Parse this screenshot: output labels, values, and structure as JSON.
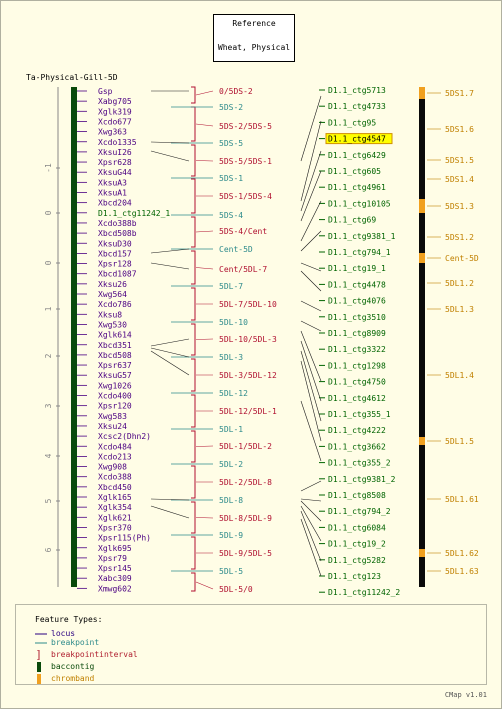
{
  "header": {
    "reference_label": "Reference",
    "reference_map": "Wheat, Physical"
  },
  "map1": {
    "title": "Ta-Physical-Gill-5D",
    "ticks": [
      "-1",
      "0",
      "0",
      "1",
      "2",
      "3",
      "4",
      "5",
      "6"
    ],
    "loci": [
      "Gsp",
      "Xabg705",
      "Xglk319",
      "Xcdo677",
      "Xwg363",
      "Xcdo1335",
      "XksuI26",
      "Xpsr628",
      "XksuG44",
      "XksuA3",
      "XksuA1",
      "Xbcd204",
      "D1.1_ctg11242_1",
      "Xcdo388b",
      "Xbcd508b",
      "XksuD30",
      "Xbcd157",
      "Xpsr128",
      "Xbcd1087",
      "Xksu26",
      "Xwg564",
      "Xcdo786",
      "Xksu8",
      "Xwg530",
      "Xglk614",
      "Xbcd351",
      "Xbcd508",
      "Xpsr637",
      "XksuG57",
      "Xwg1026",
      "Xcdo400",
      "Xpsr120",
      "Xwg583",
      "Xksu24",
      "Xcsc2(Dhn2)",
      "Xcdo484",
      "Xcdo213",
      "Xwg908",
      "Xcdo388",
      "Xbcd450",
      "Xglk165",
      "Xglk354",
      "Xglk621",
      "Xpsr370",
      "Xpsr115(Ph)",
      "Xglk695",
      "Xpsr79",
      "Xpsr145",
      "Xabc309",
      "Xmwg602"
    ]
  },
  "map2": {
    "intervals": [
      "0/5DS-2",
      "5DS-2/5DS-5",
      "5DS-5/5DS-1",
      "5DS-1/5DS-4",
      "5DS-4/Cent",
      "Cent/5DL-7",
      "5DL-7/5DL-10",
      "5DL-10/5DL-3",
      "5DL-3/5DL-12",
      "5DL-12/5DL-1",
      "5DL-1/5DL-2",
      "5DL-2/5DL-8",
      "5DL-8/5DL-9",
      "5DL-9/5DL-5",
      "5DL-5/0"
    ],
    "breakpoints": [
      "5DS-2",
      "5DS-5",
      "5DS-1",
      "5DS-4",
      "Cent-5D",
      "5DL-7",
      "5DL-10",
      "5DL-3",
      "5DL-12",
      "5DL-1",
      "5DL-2",
      "5DL-8",
      "5DL-9",
      "5DL-5"
    ]
  },
  "map3": {
    "contigs": [
      "D1.1_ctg5713",
      "D1.1_ctg4733",
      "D1.1_ctg95",
      "D1.1_ctg4547",
      "D1.1_ctg6429",
      "D1.1_ctg605",
      "D1.1_ctg4961",
      "D1.1_ctg10105",
      "D1.1_ctg69",
      "D1.1_ctg9381_1",
      "D1.1_ctg794_1",
      "D1.1_ctg19_1",
      "D1.1_ctg4478",
      "D1.1_ctg4076",
      "D1.1_ctg3510",
      "D1.1_ctg8909",
      "D1.1_ctg3322",
      "D1.1_ctg1298",
      "D1.1_ctg4750",
      "D1.1_ctg4612",
      "D1.1_ctg355_1",
      "D1.1_ctg4222",
      "D1.1_ctg3662",
      "D1.1_ctg355_2",
      "D1.1_ctg9381_2",
      "D1.1_ctg8508",
      "D1.1_ctg794_2",
      "D1.1_ctg6084",
      "D1.1_ctg19_2",
      "D1.1_ctg5282",
      "D1.1_ctg123",
      "D1.1_ctg11242_2"
    ],
    "highlighted": "D1.1_ctg4547"
  },
  "map4": {
    "bands": [
      "5DS1.7",
      "5DS1.6",
      "5DS1.5",
      "5DS1.4",
      "5DS1.3",
      "5DS1.2",
      "Cent-5D",
      "5DL1.2",
      "5DL1.3",
      "5DL1.4",
      "5DL1.5",
      "5DL1.61",
      "5DL1.62",
      "5DL1.63"
    ]
  },
  "legend": {
    "title": "Feature Types:",
    "items": [
      {
        "label": "locus",
        "color": "#2a0080"
      },
      {
        "label": "breakpoint",
        "color": "#2e8b8b"
      },
      {
        "label": "breakpointinterval",
        "color": "#b02030"
      },
      {
        "label": "baccontig",
        "color": "#0a4a0a"
      },
      {
        "label": "chromband",
        "color": "#f0a020"
      }
    ]
  },
  "footer": {
    "version": "CMap v1.01"
  },
  "colors": {
    "background": "#fffde6",
    "locus": "#4b0082",
    "breakpoint": "#2e8b8b",
    "interval": "#b01030",
    "contig": "#006400",
    "band_label": "#c08000",
    "highlight": "#ffff00"
  }
}
